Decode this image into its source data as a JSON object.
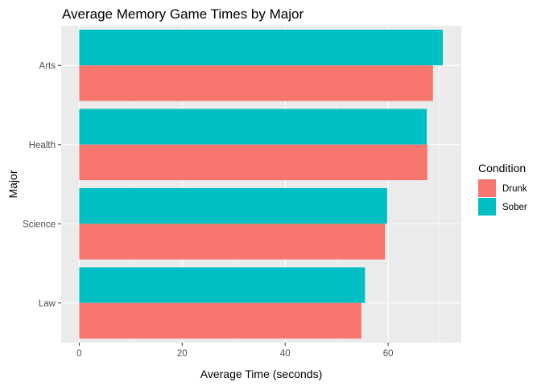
{
  "chart_data": {
    "type": "bar",
    "orientation": "horizontal",
    "title": "Average Memory Game Times by Major",
    "xlabel": "Average Time (seconds)",
    "ylabel": "Major",
    "categories": [
      "Arts",
      "Health",
      "Science",
      "Law"
    ],
    "series": [
      {
        "name": "Drunk",
        "values": [
          68.7,
          67.6,
          59.4,
          54.8
        ]
      },
      {
        "name": "Sober",
        "values": [
          70.6,
          67.5,
          59.8,
          55.5
        ]
      }
    ],
    "xlim": [
      -3.5,
      74.2
    ],
    "xticks": [
      0,
      20,
      40,
      60
    ],
    "grid": true,
    "legend": {
      "title": "Condition",
      "position": "right"
    },
    "colors": {
      "Drunk": "#F8766D",
      "Sober": "#00BFC4",
      "panel": "#EBEBEB",
      "grid_major": "#FFFFFF",
      "tick": "#333333"
    }
  }
}
